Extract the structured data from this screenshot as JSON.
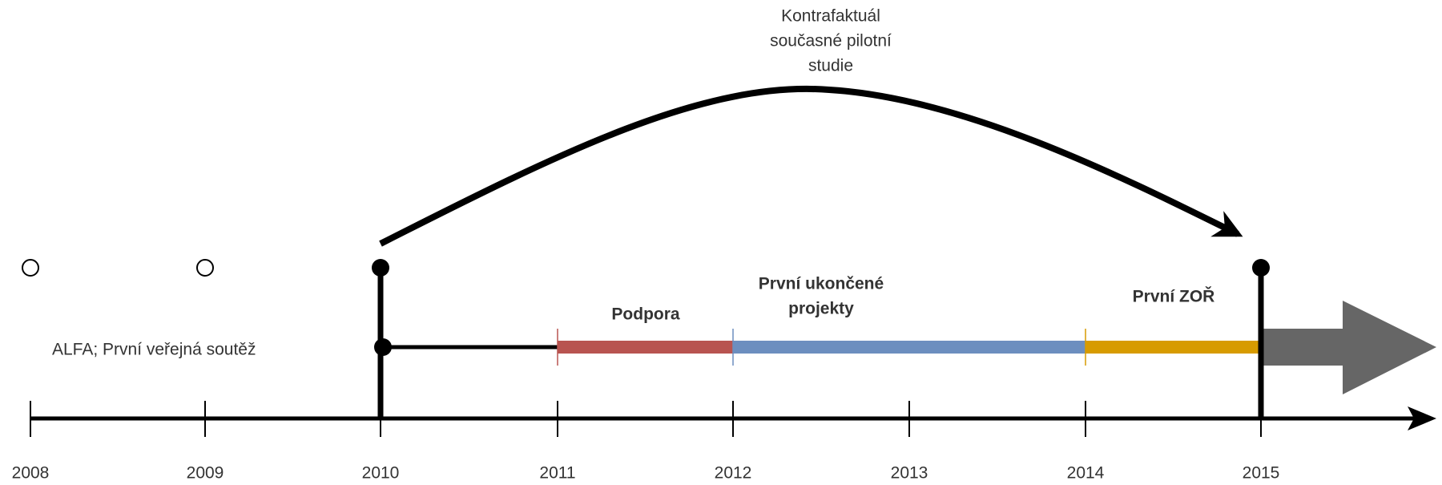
{
  "timeline": {
    "years": [
      "2008",
      "2009",
      "2010",
      "2011",
      "2012",
      "2013",
      "2014",
      "2015"
    ],
    "start_label": "ALFA; První veřejná soutěž",
    "phases": [
      {
        "lines": [
          "Podpora"
        ]
      },
      {
        "lines": [
          "První ukončené",
          "projekty"
        ]
      },
      {
        "lines": [
          "První ZOŘ"
        ]
      }
    ],
    "arc_label": [
      "Kontrafaktuál",
      "současné pilotní",
      "studie"
    ]
  }
}
